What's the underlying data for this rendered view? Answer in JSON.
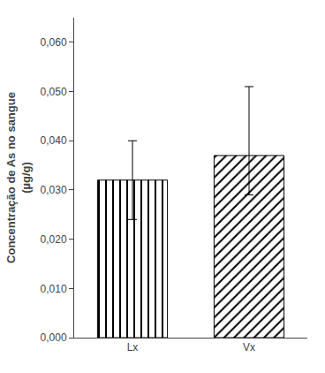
{
  "chart_data": {
    "type": "bar",
    "categories": [
      "Lx",
      "Vx"
    ],
    "values": [
      0.032,
      0.037
    ],
    "errors_upper": [
      0.008,
      0.014
    ],
    "errors_lower": [
      0.008,
      0.008
    ],
    "ylabel": "Concentração de As no sangue\n(µg/g)",
    "ylim": [
      0.0,
      0.065
    ],
    "yticks": [
      {
        "value": 0.0,
        "label": "0,000"
      },
      {
        "value": 0.01,
        "label": "0,010"
      },
      {
        "value": 0.02,
        "label": "0,020"
      },
      {
        "value": 0.03,
        "label": "0,030"
      },
      {
        "value": 0.04,
        "label": "0,040"
      },
      {
        "value": 0.05,
        "label": "0,050"
      },
      {
        "value": 0.06,
        "label": "0,060"
      }
    ],
    "color": "#ffffff",
    "grid": false
  }
}
